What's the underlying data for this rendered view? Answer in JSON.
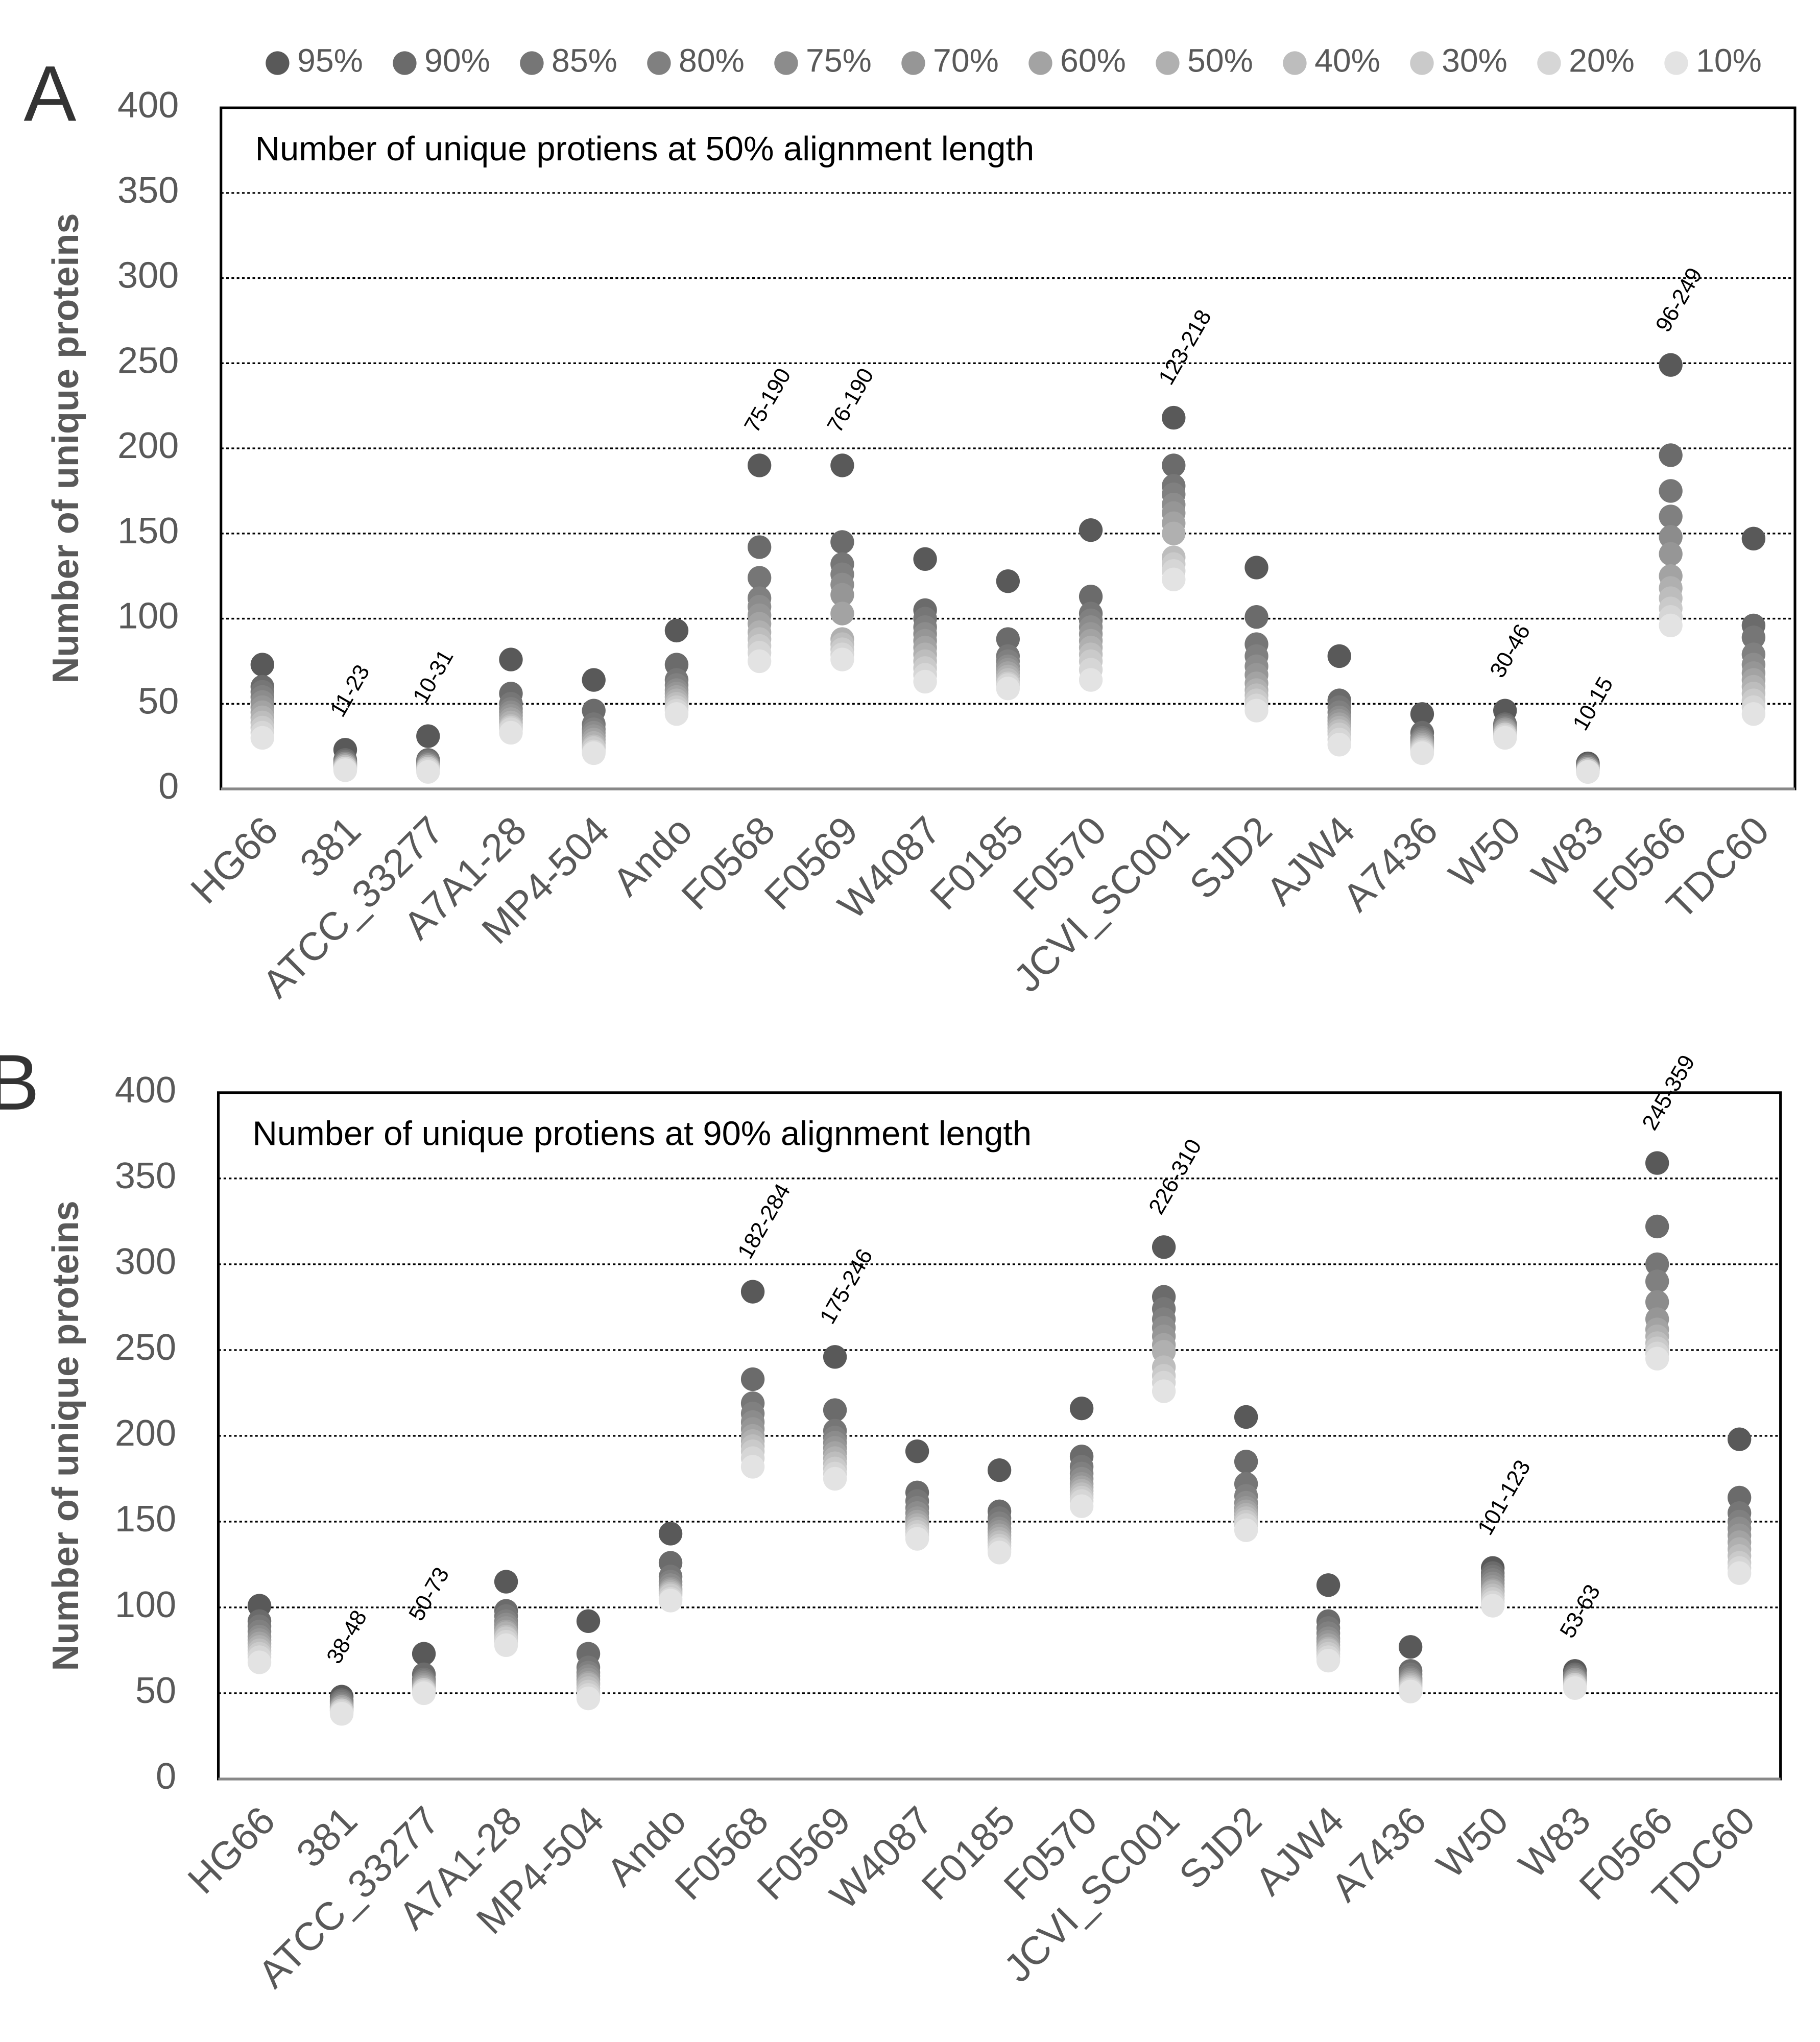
{
  "chart_data": [
    {
      "type": "scatter",
      "panel_label": "A",
      "title": "Number of unique protiens at 50% alignment length",
      "ylabel": "Number of unique proteins",
      "categories": [
        "HG66",
        "381",
        "ATCC_33277",
        "A7A1-28",
        "MP4-504",
        "Ando",
        "F0568",
        "F0569",
        "W4087",
        "F0185",
        "F0570",
        "JCVI_SC001",
        "SJD2",
        "AJW4",
        "A7436",
        "W50",
        "W83",
        "F0566",
        "TDC60"
      ],
      "ylim": [
        0,
        400
      ],
      "yticks": [
        0,
        50,
        100,
        150,
        200,
        250,
        300,
        350,
        400
      ],
      "grid": true,
      "range_labels": [
        null,
        "11-23",
        "10-31",
        null,
        null,
        null,
        "75-190",
        "76-190",
        null,
        null,
        null,
        "123-218",
        null,
        null,
        null,
        "30-46",
        "10-15",
        "96-249",
        null
      ],
      "series": [
        {
          "name": "95%",
          "color": "#595959",
          "values": [
            73,
            23,
            31,
            76,
            64,
            93,
            190,
            190,
            135,
            122,
            152,
            218,
            130,
            78,
            44,
            46,
            15,
            249,
            147
          ]
        },
        {
          "name": "90%",
          "color": "#6b6b6b",
          "values": [
            60,
            17,
            17,
            56,
            46,
            73,
            142,
            145,
            105,
            88,
            113,
            190,
            101,
            52,
            33,
            38,
            14,
            196,
            96
          ]
        },
        {
          "name": "85%",
          "color": "#767676",
          "values": [
            57,
            16,
            16,
            50,
            38,
            64,
            124,
            132,
            100,
            78,
            103,
            178,
            85,
            48,
            30,
            37,
            13,
            175,
            89
          ]
        },
        {
          "name": "80%",
          "color": "#808080",
          "values": [
            54,
            15,
            15,
            47,
            35,
            61,
            112,
            126,
            95,
            75,
            99,
            173,
            78,
            45,
            29,
            36,
            13,
            160,
            79
          ]
        },
        {
          "name": "75%",
          "color": "#8c8c8c",
          "values": [
            51,
            15,
            14,
            45,
            33,
            58,
            107,
            120,
            91,
            72,
            95,
            167,
            72,
            42,
            28,
            35,
            12,
            148,
            73
          ]
        },
        {
          "name": "70%",
          "color": "#969696",
          "values": [
            48,
            14,
            14,
            43,
            31,
            56,
            102,
            114,
            87,
            70,
            91,
            162,
            67,
            40,
            27,
            35,
            12,
            138,
            68
          ]
        },
        {
          "name": "60%",
          "color": "#a3a3a3",
          "values": [
            45,
            14,
            13,
            41,
            29,
            54,
            97,
            103,
            83,
            68,
            87,
            156,
            62,
            38,
            26,
            34,
            12,
            125,
            64
          ]
        },
        {
          "name": "50%",
          "color": "#b0b0b0",
          "values": [
            42,
            13,
            13,
            39,
            27,
            52,
            92,
            88,
            79,
            66,
            83,
            150,
            58,
            36,
            25,
            33,
            11,
            118,
            60
          ]
        },
        {
          "name": "40%",
          "color": "#bdbdbd",
          "values": [
            39,
            13,
            12,
            37,
            25,
            50,
            88,
            85,
            75,
            64,
            79,
            136,
            55,
            34,
            24,
            32,
            11,
            112,
            56
          ]
        },
        {
          "name": "30%",
          "color": "#cacaca",
          "values": [
            36,
            12,
            12,
            36,
            24,
            48,
            84,
            82,
            71,
            62,
            75,
            132,
            52,
            32,
            23,
            32,
            11,
            106,
            52
          ]
        },
        {
          "name": "20%",
          "color": "#d6d6d6",
          "values": [
            33,
            12,
            11,
            35,
            22,
            46,
            80,
            79,
            67,
            61,
            70,
            128,
            49,
            29,
            22,
            31,
            10,
            101,
            48
          ]
        },
        {
          "name": "10%",
          "color": "#e3e3e3",
          "values": [
            30,
            11,
            10,
            33,
            21,
            44,
            75,
            76,
            63,
            59,
            64,
            123,
            46,
            26,
            21,
            30,
            10,
            96,
            44
          ]
        }
      ]
    },
    {
      "type": "scatter",
      "panel_label": "B",
      "title": "Number of unique protiens at 90% alignment length",
      "ylabel": "Number of unique proteins",
      "categories": [
        "HG66",
        "381",
        "ATCC_33277",
        "A7A1-28",
        "MP4-504",
        "Ando",
        "F0568",
        "F0569",
        "W4087",
        "F0185",
        "F0570",
        "JCVI_SC001",
        "SJD2",
        "AJW4",
        "A7436",
        "W50",
        "W83",
        "F0566",
        "TDC60"
      ],
      "ylim": [
        0,
        400
      ],
      "yticks": [
        0,
        50,
        100,
        150,
        200,
        250,
        300,
        350,
        400
      ],
      "grid": true,
      "range_labels": [
        null,
        "38-48",
        "50-73",
        null,
        null,
        null,
        "182-284",
        "175-246",
        null,
        null,
        null,
        "226-310",
        null,
        null,
        null,
        "101-123",
        "53-63",
        "245-359",
        null
      ],
      "series": [
        {
          "color": "#595959",
          "values": [
            101,
            48,
            73,
            115,
            92,
            143,
            284,
            246,
            191,
            180,
            216,
            310,
            211,
            113,
            77,
            123,
            63,
            359,
            198
          ]
        },
        {
          "color": "#6b6b6b",
          "values": [
            92,
            46,
            61,
            98,
            73,
            126,
            233,
            215,
            167,
            156,
            188,
            281,
            185,
            92,
            63,
            120,
            61,
            322,
            164
          ]
        },
        {
          "color": "#767676",
          "values": [
            89,
            45,
            58,
            95,
            65,
            118,
            219,
            203,
            162,
            152,
            182,
            274,
            172,
            88,
            61,
            118,
            60,
            300,
            155
          ]
        },
        {
          "color": "#808080",
          "values": [
            86,
            44,
            57,
            92,
            62,
            115,
            213,
            199,
            158,
            149,
            178,
            268,
            165,
            85,
            59,
            116,
            59,
            290,
            150
          ]
        },
        {
          "color": "#8c8c8c",
          "values": [
            83,
            43,
            56,
            90,
            60,
            113,
            208,
            196,
            155,
            146,
            175,
            263,
            161,
            82,
            58,
            114,
            58,
            278,
            146
          ]
        },
        {
          "color": "#969696",
          "values": [
            81,
            42,
            55,
            88,
            58,
            111,
            204,
            193,
            152,
            144,
            172,
            258,
            158,
            80,
            57,
            112,
            58,
            268,
            142
          ]
        },
        {
          "color": "#a3a3a3",
          "values": [
            79,
            42,
            54,
            86,
            56,
            110,
            200,
            190,
            150,
            142,
            170,
            253,
            156,
            78,
            56,
            110,
            57,
            262,
            138
          ]
        },
        {
          "color": "#b0b0b0",
          "values": [
            77,
            41,
            53,
            85,
            55,
            109,
            197,
            187,
            148,
            140,
            168,
            249,
            154,
            76,
            55,
            109,
            56,
            258,
            134
          ]
        },
        {
          "color": "#bdbdbd",
          "values": [
            75,
            40,
            52,
            83,
            53,
            108,
            194,
            184,
            146,
            138,
            166,
            240,
            152,
            75,
            54,
            107,
            55,
            254,
            130
          ]
        },
        {
          "color": "#cacaca",
          "values": [
            73,
            40,
            52,
            82,
            51,
            107,
            191,
            181,
            144,
            136,
            164,
            235,
            150,
            73,
            53,
            105,
            55,
            251,
            126
          ]
        },
        {
          "color": "#d6d6d6",
          "values": [
            71,
            39,
            51,
            80,
            49,
            105,
            187,
            178,
            142,
            134,
            162,
            231,
            148,
            71,
            52,
            103,
            54,
            248,
            123
          ]
        },
        {
          "color": "#e3e3e3",
          "values": [
            68,
            38,
            50,
            78,
            47,
            104,
            182,
            175,
            140,
            132,
            159,
            226,
            145,
            69,
            51,
            101,
            53,
            245,
            120
          ]
        }
      ]
    }
  ]
}
